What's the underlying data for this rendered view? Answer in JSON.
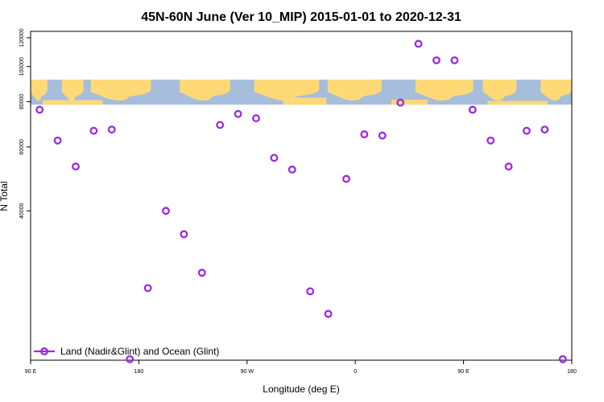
{
  "chart_data": {
    "type": "scatter",
    "title": "45N-60N June (Ver 10_MIP)   2015-01-01 to 2020-12-31",
    "xlabel": "Longitude (deg E)",
    "ylabel": "N Total",
    "y_scale": "log",
    "xlim": [
      90,
      540
    ],
    "ylim": [
      15500,
      125000
    ],
    "x_ticks": [
      {
        "value": 90,
        "label": "90 E"
      },
      {
        "value": 180,
        "label": "180"
      },
      {
        "value": 270,
        "label": "90 W"
      },
      {
        "value": 360,
        "label": "0"
      },
      {
        "value": 450,
        "label": "90 E"
      },
      {
        "value": 540,
        "label": "180"
      }
    ],
    "y_ticks": [
      {
        "value": 40000,
        "label": "40000"
      },
      {
        "value": 60000,
        "label": "60000"
      },
      {
        "value": 80000,
        "label": "80000"
      },
      {
        "value": 100000,
        "label": "100000"
      },
      {
        "value": 120000,
        "label": "120000"
      }
    ],
    "grid": false,
    "legend_position": "bottom-left",
    "map_band": {
      "from": 78500,
      "to": 92000,
      "land_color": "#fed976",
      "ocean_color": "#a6bddb"
    },
    "series": [
      {
        "name": "Land (Nadir&Glint) and Ocean (Glint)",
        "color": "#9a2be2",
        "marker": "open-circle",
        "x": [
          97.5,
          112.5,
          127.5,
          142.5,
          157.5,
          172.5,
          187.5,
          202.5,
          217.5,
          232.5,
          247.5,
          262.5,
          277.5,
          292.5,
          307.5,
          322.5,
          337.5,
          352.5,
          367.5,
          382.5,
          397.5,
          412.5,
          427.5,
          442.5,
          457.5,
          472.5,
          487.5,
          502.5,
          517.5,
          532.5
        ],
        "y": [
          76000,
          62500,
          53000,
          66500,
          67000,
          15600,
          24500,
          40000,
          34500,
          27000,
          69000,
          74000,
          72000,
          56000,
          52000,
          24000,
          20800,
          49000,
          65000,
          64500,
          79500,
          115500,
          104000,
          104000,
          76000,
          62500,
          53000,
          66500,
          67000,
          15600
        ]
      }
    ]
  }
}
